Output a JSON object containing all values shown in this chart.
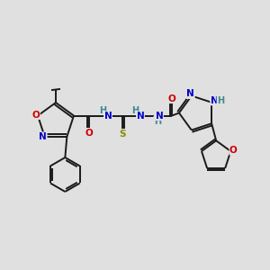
{
  "bg_color": "#e0e0e0",
  "bond_color": "#1a1a1a",
  "atom_colors": {
    "N": "#0000cc",
    "O": "#cc0000",
    "S": "#8a8a00",
    "H": "#3a8a8a",
    "C": "#1a1a1a"
  },
  "figsize": [
    3.0,
    3.0
  ],
  "dpi": 100,
  "lw": 1.4,
  "fontsize": 7.5
}
